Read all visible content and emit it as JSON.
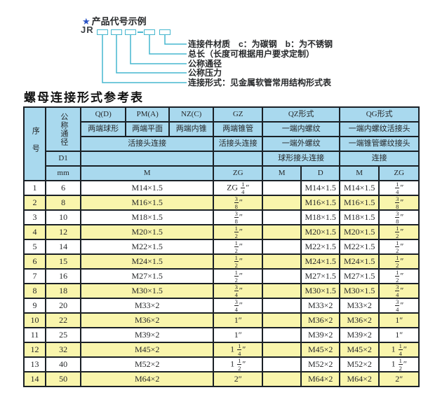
{
  "colors": {
    "header_bg": "#a9d9ee",
    "stripe_bg": "#f9f5ac",
    "border": "#1a2026",
    "connector_teal": "#47b7cf",
    "star_blue": "#2a53c5"
  },
  "diagram": {
    "star": "★",
    "title": "产品代号示例",
    "prefix": "JR",
    "labels": [
      "连接件材质　c：为碳钢　b：为不锈钢",
      "总长（长度可根据用户要求定制）",
      "公称通径",
      "公称压力",
      "连接形式：见金属软管常用结构形式表"
    ]
  },
  "table_title": "螺母连接形式参考表",
  "table": {
    "seq": "序号",
    "dn": "公称通径",
    "d1": "D1",
    "mm": "mm",
    "h1": [
      "Q(D)",
      "PM(A)",
      "NZ(C)",
      "GZ",
      "QZ形式",
      "QG形式"
    ],
    "h2": [
      "两端球形",
      "两端平面",
      "两端内锥",
      "两端锥管",
      "一端内螺纹",
      "一端内螺纹活接头"
    ],
    "h3": [
      "活接头连接",
      "活接头连接",
      "一端外螺纹",
      "一端锥管螺纹接头"
    ],
    "h4": [
      "球形接头连接",
      "连接"
    ],
    "h5": [
      "M",
      "ZG",
      "M",
      "D",
      "M",
      "ZG"
    ],
    "rows": [
      [
        "1",
        "6",
        "M14×1.5",
        "ZG 1/4″",
        "",
        "M14×1.5",
        "M14×1.5",
        "1/4″"
      ],
      [
        "2",
        "8",
        "M16×1.5",
        "3/8″",
        "",
        "M16×1.5",
        "M16×1.5",
        "3/8″"
      ],
      [
        "3",
        "10",
        "M18×1.5",
        "3/8″",
        "",
        "M18×1.5",
        "M18×1.5",
        "3/8″"
      ],
      [
        "4",
        "12",
        "M20×1.5",
        "1/2″",
        "",
        "M20×1.5",
        "M20×1.5",
        "1/2″"
      ],
      [
        "5",
        "14",
        "M22×1.5",
        "1/2″",
        "",
        "M22×1.5",
        "M22×1.5",
        "1/2″"
      ],
      [
        "6",
        "15",
        "M24×1.5",
        "1/2″",
        "",
        "M24×1.5",
        "M24×1.5",
        "1/2″"
      ],
      [
        "7",
        "16",
        "M27×1.5",
        "1/2″",
        "",
        "M27×1.5",
        "M27×1.5",
        "1/2″"
      ],
      [
        "8",
        "18",
        "M30×1.5",
        "3/4″",
        "",
        "M30×1.5",
        "M30×1.5",
        "3/4″"
      ],
      [
        "9",
        "20",
        "M33×2",
        "3/4″",
        "",
        "M33×2",
        "M33×2",
        "3/4″"
      ],
      [
        "10",
        "22",
        "M36×2",
        "1″",
        "",
        "M36×2",
        "M36×2",
        "1″"
      ],
      [
        "11",
        "25",
        "M39×2",
        "1″",
        "",
        "M39×2",
        "M39×2",
        "1″"
      ],
      [
        "12",
        "32",
        "M45×2",
        "1 1/4″",
        "",
        "M45×2",
        "M45×2",
        "1 1/4″"
      ],
      [
        "13",
        "40",
        "M52×2",
        "1 1/2″",
        "",
        "M52×2",
        "M52×2",
        "1 1/2″"
      ],
      [
        "14",
        "50",
        "M64×2",
        "2″",
        "",
        "M64×2",
        "M64×2",
        "2″"
      ]
    ]
  }
}
